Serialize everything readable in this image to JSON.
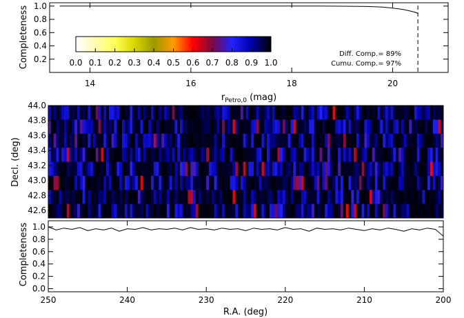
{
  "chart_data": [
    {
      "id": "top",
      "type": "line",
      "title": "",
      "xlabel_main": "r",
      "xlabel_sub": "Petro,0",
      "xlabel_unit": " (mag)",
      "ylabel": "Completeness",
      "xlim": [
        13.2,
        21.1
      ],
      "ylim": [
        0.0,
        1.05
      ],
      "xticks": [
        14,
        16,
        18,
        20
      ],
      "yticks": [
        0.2,
        0.4,
        0.6,
        0.8,
        1.0
      ],
      "x": [
        13.4,
        14,
        15,
        16,
        17,
        18,
        18.5,
        19,
        19.5,
        19.8,
        20.0,
        20.2,
        20.35,
        20.45,
        20.5
      ],
      "y": [
        1.0,
        1.0,
        1.0,
        1.0,
        1.0,
        1.0,
        1.0,
        0.998,
        0.994,
        0.985,
        0.97,
        0.95,
        0.925,
        0.905,
        0.89
      ],
      "cutoff": 20.5,
      "annotations": [
        "Diff. Comp.= 89%",
        "Cumu. Comp.= 97%"
      ],
      "colorbar": {
        "ticks": [
          "0.0",
          "0.1",
          "0.2",
          "0.3",
          "0.4",
          "0.5",
          "0.6",
          "0.7",
          "0.8",
          "0.9",
          "1.0"
        ],
        "stops": [
          "#ffffff",
          "#fffbb0",
          "#ffff55",
          "#d8d800",
          "#9a9a00",
          "#ff9a00",
          "#ff0000",
          "#7a0a45",
          "#2222ff",
          "#0000aa",
          "#000000"
        ]
      }
    },
    {
      "id": "map",
      "type": "heatmap",
      "ylabel": "Decl. (deg)",
      "xlim": [
        250,
        200
      ],
      "ylim": [
        42.5,
        44.0
      ],
      "yticks": [
        "44.0",
        "43.8",
        "43.6",
        "43.4",
        "43.2",
        "43.0",
        "42.8",
        "42.6"
      ],
      "ncols": 150,
      "nrows": 8,
      "value_range": [
        0.6,
        1.0
      ]
    },
    {
      "id": "bottom",
      "type": "line",
      "xlabel": "R.A. (deg)",
      "ylabel": "Completeness",
      "xlim": [
        250,
        200
      ],
      "ylim": [
        -0.05,
        1.1
      ],
      "xticks": [
        "250",
        "240",
        "230",
        "220",
        "210",
        "200"
      ],
      "yticks": [
        "0.0",
        "0.2",
        "0.4",
        "0.6",
        "0.8",
        "1.0"
      ],
      "x": [
        250,
        249,
        248,
        247,
        246,
        245,
        244,
        243,
        242,
        241,
        240,
        239,
        238,
        237,
        236,
        235,
        234,
        233,
        232,
        231,
        230,
        229,
        228,
        227,
        226,
        225,
        224,
        223,
        222,
        221,
        220,
        219,
        218,
        217,
        216,
        215,
        214,
        213,
        212,
        211,
        210,
        209,
        208,
        207,
        206,
        205,
        204,
        203,
        202,
        201,
        200
      ],
      "y": [
        1.0,
        0.95,
        0.98,
        0.96,
        0.99,
        0.94,
        0.97,
        0.95,
        0.98,
        0.93,
        0.97,
        0.96,
        0.99,
        0.95,
        0.97,
        0.96,
        0.98,
        0.95,
        0.99,
        0.96,
        0.97,
        0.95,
        0.98,
        0.96,
        0.97,
        0.94,
        0.98,
        0.96,
        0.97,
        0.95,
        0.99,
        0.96,
        0.97,
        0.93,
        0.98,
        0.96,
        0.97,
        0.95,
        0.98,
        0.96,
        0.94,
        0.97,
        0.95,
        0.98,
        0.96,
        0.93,
        0.97,
        0.95,
        0.98,
        0.96,
        0.85
      ]
    }
  ]
}
